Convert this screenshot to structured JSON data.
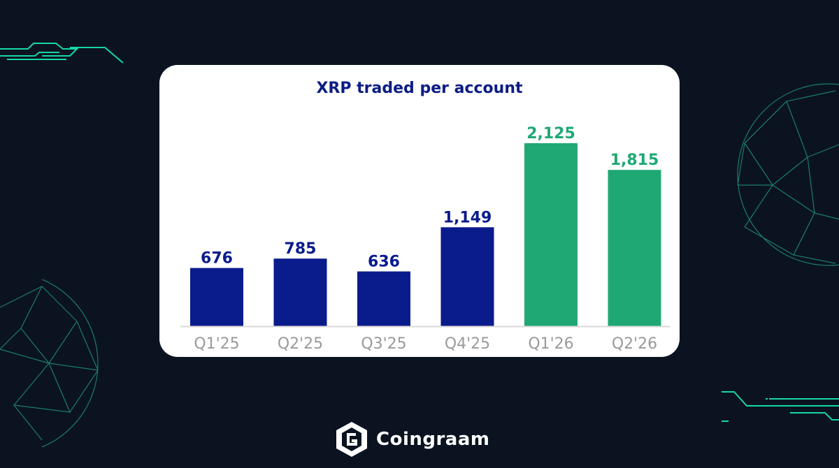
{
  "brand": {
    "name": "Coingraam"
  },
  "colors": {
    "background": "#0b1320",
    "card": "#ffffff",
    "blue_bar": "#0a1b8c",
    "green_bar": "#20a874",
    "accent_line": "#16d6a6",
    "axis_label": "#9a9a9a"
  },
  "chart_data": {
    "type": "bar",
    "title": "XRP traded per account",
    "xlabel": "",
    "ylabel": "",
    "categories": [
      "Q1'25",
      "Q2'25",
      "Q3'25",
      "Q4'25",
      "Q1'26",
      "Q2'26"
    ],
    "values": [
      676,
      785,
      636,
      1149,
      2125,
      1815
    ],
    "value_labels": [
      "676",
      "785",
      "636",
      "1,149",
      "2,125",
      "1,815"
    ],
    "bar_colors": [
      "#0a1b8c",
      "#0a1b8c",
      "#0a1b8c",
      "#0a1b8c",
      "#20a874",
      "#20a874"
    ],
    "ylim": [
      0,
      2125
    ],
    "grid": false,
    "legend": "none"
  }
}
